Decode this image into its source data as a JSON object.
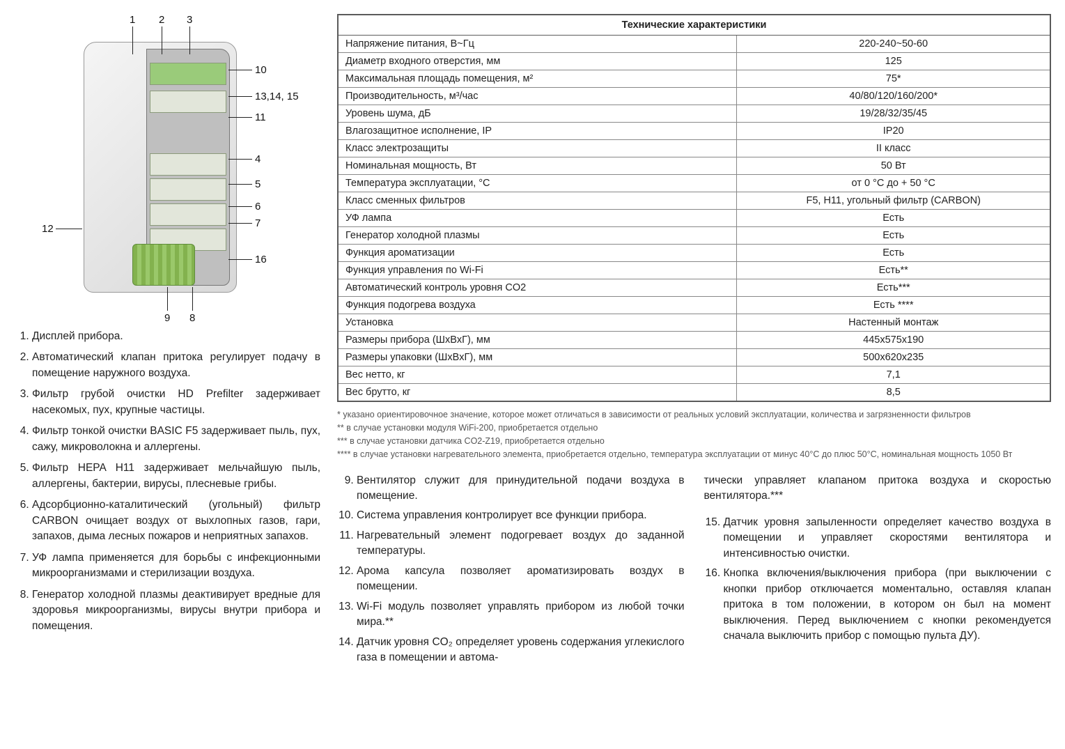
{
  "diagram_labels": {
    "n1": "1",
    "n2": "2",
    "n3": "3",
    "n10": "10",
    "n13": "13,14, 15",
    "n11": "11",
    "n4": "4",
    "n5": "5",
    "n6": "6",
    "n7": "7",
    "n16": "16",
    "n12": "12",
    "n9": "9",
    "n8": "8"
  },
  "legend_items": [
    "Дисплей прибора.",
    "Автоматический клапан притока регулирует подачу в помещение наружного воздуха.",
    "Фильтр грубой очистки HD Prefilter задерживает насекомых, пух, крупные частицы.",
    "Фильтр тонкой очистки BASIC F5 задерживает пыль, пух, сажу, микроволокна и аллергены.",
    "Фильтр HEPA H11 задерживает мельчайшую пыль, аллергены, бактерии, вирусы, плесневые грибы.",
    "Адсорбционно-каталитический (угольный) фильтр CARBON очищает воздух от выхлопных газов, гари, запахов, дыма лесных пожаров и неприятных запахов.",
    "УФ лампа применяется для борьбы с инфекционными микроорганизмами и стерилизации воздуха.",
    "Генератор холодной плазмы деактивирует вредные для здоровья микроорганизмы, вирусы внутри прибора и помещения."
  ],
  "spec_title": "Технические характеристики",
  "spec_rows": [
    {
      "l": "Напряжение питания, В~Гц",
      "v": "220-240~50-60"
    },
    {
      "l": "Диаметр входного отверстия, мм",
      "v": "125"
    },
    {
      "l": "Максимальная площадь помещения, м²",
      "v": "75*"
    },
    {
      "l": "Производительность, м³/час",
      "v": "40/80/120/160/200*"
    },
    {
      "l": "Уровень шума, дБ",
      "v": "19/28/32/35/45"
    },
    {
      "l": "Влагозащитное исполнение, IP",
      "v": "IP20"
    },
    {
      "l": "Класс электрозащиты",
      "v": "II класс"
    },
    {
      "l": "Номинальная мощность, Вт",
      "v": "50 Вт"
    },
    {
      "l": "Температура эксплуатации, °С",
      "v": "от 0 °С до + 50 °С"
    },
    {
      "l": "Класс сменных фильтров",
      "v": "F5, H11, угольный фильтр (CARBON)"
    },
    {
      "l": "УФ лампа",
      "v": "Есть"
    },
    {
      "l": "Генератор холодной плазмы",
      "v": "Есть"
    },
    {
      "l": "Функция ароматизации",
      "v": "Есть"
    },
    {
      "l": "Функция управления по Wi-Fi",
      "v": "Есть**"
    },
    {
      "l": "Автоматический контроль уровня CO2",
      "v": "Есть***"
    },
    {
      "l": "Функция подогрева воздуха",
      "v": "Есть ****"
    },
    {
      "l": "Установка",
      "v": "Настенный монтаж"
    },
    {
      "l": "Размеры прибора (ШxВxГ), мм",
      "v": "445x575x190"
    },
    {
      "l": "Размеры упаковки (ШxВxГ), мм",
      "v": "500x620x235"
    },
    {
      "l": "Вес нетто, кг",
      "v": "7,1"
    },
    {
      "l": "Вес брутто, кг",
      "v": "8,5"
    }
  ],
  "footnotes": [
    "* указано ориентировочное значение, которое может отличаться в зависимости от реальных условий эксплуатации, количества и загрязненности фильтров",
    "** в случае установки модуля WiFi-200, приобретается отдельно",
    "*** в случае установки датчика CO2-Z19, приобретается отдельно",
    "**** в случае установки нагревательного элемента, приобретается отдельно, температура эксплуатации от минус 40°С до плюс 50°С, номинальная мощность 1050 Вт"
  ],
  "col_middle_start": 9,
  "col_middle": [
    "Вентилятор служит для принудительной подачи воздуха в помещение.",
    "Система управления контролирует все функции прибора.",
    "Нагревательный элемент подогревает воздух до заданной температуры.",
    "Арома капсула позволяет ароматизировать воздух в помещении.",
    "Wi-Fi модуль позволяет управлять прибором из любой точки мира.**",
    "Датчик уровня CO₂ определяет уровень содержания углекислого газа в помещении и автома-"
  ],
  "col_right_lead": "тически управляет клапаном притока воздуха и скоростью вентилятора.***",
  "col_right_start": 15,
  "col_right": [
    "Датчик уровня запыленности определяет качество воздуха в помещении и управляет скоростями вентилятора и интенсивностью очистки.",
    "Кнопка включения/выключения прибора (при выключении с кнопки прибор отключается моментально, оставляя клапан притока в том положении, в котором он был на момент выключения. Перед выключением с кнопки рекомендуется сначала выключить прибор с помощью пульта ДУ)."
  ],
  "style": {
    "table_border": "#5a5a5a",
    "cell_border": "#888888",
    "footnote_color": "#555555",
    "body_font_size": 14,
    "legend_font_size": 15.5
  }
}
